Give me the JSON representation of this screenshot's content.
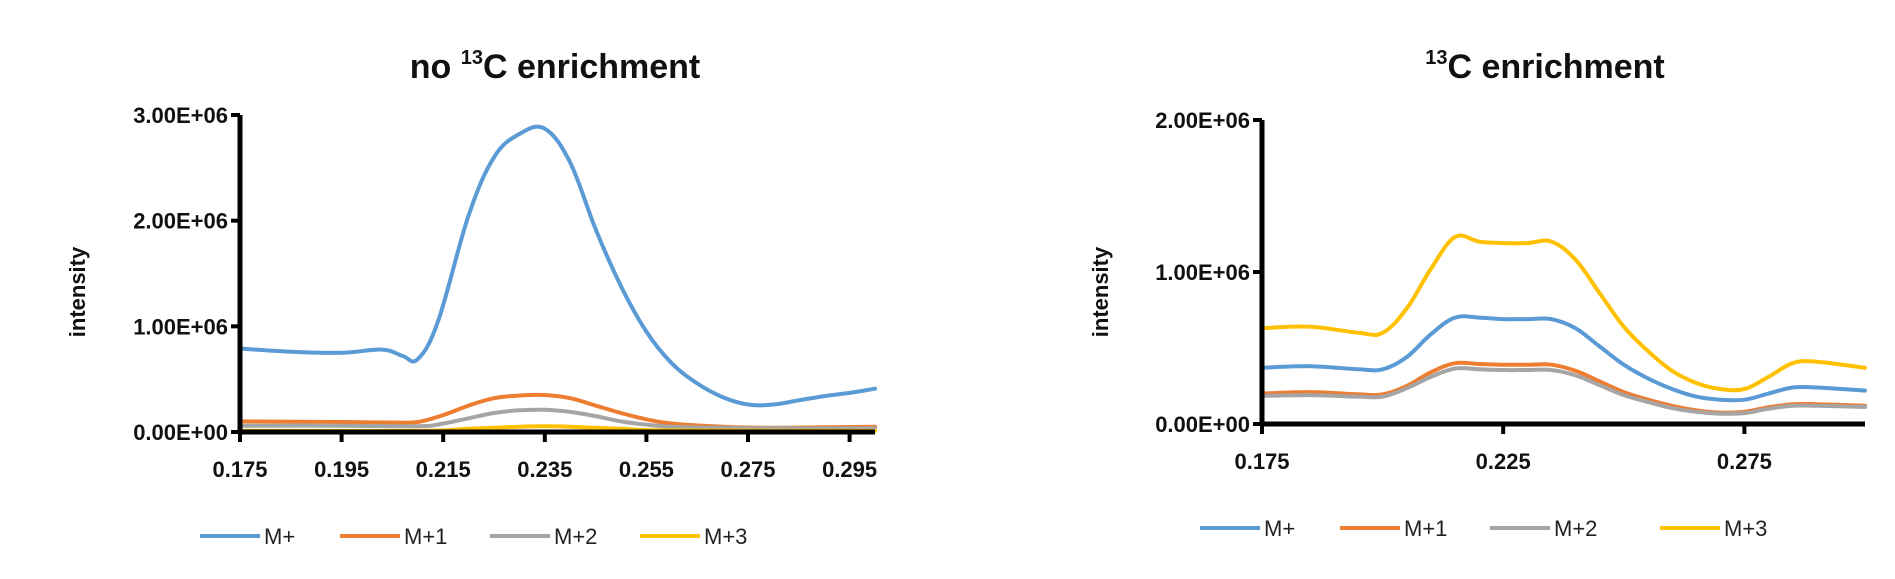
{
  "chart_data": [
    {
      "type": "line",
      "title_prefix": "no ",
      "title_sup": "13",
      "title_suffix": "C enrichment",
      "ylabel": "intensity",
      "xlabel": "",
      "xlim": [
        0.175,
        0.3
      ],
      "ylim": [
        0,
        3000000
      ],
      "xticks": [
        0.175,
        0.195,
        0.215,
        0.235,
        0.255,
        0.275,
        0.295
      ],
      "xtick_labels": [
        "0.175",
        "0.195",
        "0.215",
        "0.235",
        "0.255",
        "0.275",
        "0.295"
      ],
      "yticks": [
        0,
        1000000,
        2000000,
        3000000
      ],
      "ytick_labels": [
        "0.00E+00",
        "1.00E+06",
        "2.00E+06",
        "3.00E+06"
      ],
      "legend_position": "bottom",
      "series": [
        {
          "name": "M+",
          "color": "#5B9BD5",
          "x": [
            0.175,
            0.185,
            0.195,
            0.203,
            0.207,
            0.21,
            0.214,
            0.22,
            0.225,
            0.23,
            0.235,
            0.24,
            0.245,
            0.25,
            0.255,
            0.26,
            0.265,
            0.27,
            0.275,
            0.28,
            0.285,
            0.29,
            0.295,
            0.3
          ],
          "y": [
            790000,
            760000,
            750000,
            780000,
            720000,
            690000,
            1050000,
            2050000,
            2600000,
            2820000,
            2870000,
            2550000,
            1920000,
            1380000,
            950000,
            650000,
            460000,
            330000,
            260000,
            260000,
            300000,
            340000,
            370000,
            410000
          ]
        },
        {
          "name": "M+1",
          "color": "#ED7D31",
          "x": [
            0.175,
            0.195,
            0.205,
            0.21,
            0.215,
            0.22,
            0.225,
            0.23,
            0.235,
            0.24,
            0.245,
            0.25,
            0.255,
            0.26,
            0.27,
            0.28,
            0.29,
            0.3
          ],
          "y": [
            100000,
            95000,
            90000,
            95000,
            160000,
            250000,
            320000,
            345000,
            350000,
            320000,
            250000,
            180000,
            120000,
            80000,
            50000,
            40000,
            45000,
            50000
          ]
        },
        {
          "name": "M+2",
          "color": "#A5A5A5",
          "x": [
            0.175,
            0.195,
            0.21,
            0.215,
            0.22,
            0.225,
            0.23,
            0.235,
            0.24,
            0.245,
            0.25,
            0.255,
            0.26,
            0.27,
            0.28,
            0.3
          ],
          "y": [
            60000,
            60000,
            55000,
            80000,
            130000,
            180000,
            205000,
            210000,
            190000,
            150000,
            100000,
            70000,
            50000,
            40000,
            35000,
            35000
          ]
        },
        {
          "name": "M+3",
          "color": "#FFC000",
          "x": [
            0.175,
            0.21,
            0.22,
            0.23,
            0.235,
            0.24,
            0.25,
            0.26,
            0.3
          ],
          "y": [
            10000,
            10000,
            30000,
            50000,
            55000,
            50000,
            30000,
            15000,
            10000
          ]
        }
      ],
      "legend": [
        "M+",
        "M+1",
        "M+2",
        "M+3"
      ]
    },
    {
      "type": "line",
      "title_prefix": "",
      "title_sup": "13",
      "title_suffix": "C enrichment",
      "ylabel": "intensity",
      "xlabel": "",
      "xlim": [
        0.175,
        0.3
      ],
      "ylim": [
        0,
        2000000
      ],
      "xticks": [
        0.175,
        0.225,
        0.275
      ],
      "xtick_labels": [
        "0.175",
        "0.225",
        "0.275"
      ],
      "yticks": [
        0,
        1000000,
        2000000
      ],
      "ytick_labels": [
        "0.00E+00",
        "1.00E+06",
        "2.00E+06"
      ],
      "legend_position": "bottom",
      "series": [
        {
          "name": "M+",
          "color": "#5B9BD5",
          "x": [
            0.175,
            0.185,
            0.195,
            0.2,
            0.205,
            0.21,
            0.215,
            0.22,
            0.225,
            0.23,
            0.235,
            0.24,
            0.245,
            0.25,
            0.255,
            0.26,
            0.265,
            0.27,
            0.275,
            0.28,
            0.285,
            0.29,
            0.3
          ],
          "y": [
            370000,
            380000,
            360000,
            360000,
            440000,
            590000,
            700000,
            700000,
            690000,
            690000,
            690000,
            630000,
            510000,
            390000,
            300000,
            230000,
            180000,
            160000,
            160000,
            200000,
            240000,
            240000,
            220000
          ]
        },
        {
          "name": "M+1",
          "color": "#ED7D31",
          "x": [
            0.175,
            0.185,
            0.195,
            0.2,
            0.205,
            0.21,
            0.215,
            0.22,
            0.225,
            0.23,
            0.235,
            0.24,
            0.245,
            0.25,
            0.255,
            0.26,
            0.265,
            0.27,
            0.275,
            0.28,
            0.285,
            0.29,
            0.3
          ],
          "y": [
            200000,
            210000,
            195000,
            195000,
            250000,
            340000,
            400000,
            395000,
            390000,
            390000,
            390000,
            350000,
            280000,
            210000,
            160000,
            120000,
            90000,
            75000,
            80000,
            110000,
            130000,
            130000,
            120000
          ]
        },
        {
          "name": "M+2",
          "color": "#A5A5A5",
          "x": [
            0.175,
            0.185,
            0.195,
            0.2,
            0.205,
            0.21,
            0.215,
            0.22,
            0.225,
            0.23,
            0.235,
            0.24,
            0.245,
            0.25,
            0.255,
            0.26,
            0.265,
            0.27,
            0.275,
            0.28,
            0.285,
            0.29,
            0.3
          ],
          "y": [
            185000,
            190000,
            180000,
            180000,
            235000,
            310000,
            365000,
            360000,
            355000,
            355000,
            355000,
            320000,
            255000,
            190000,
            145000,
            105000,
            80000,
            68000,
            72000,
            100000,
            120000,
            120000,
            112000
          ]
        },
        {
          "name": "M+3",
          "color": "#FFC000",
          "x": [
            0.175,
            0.185,
            0.195,
            0.2,
            0.205,
            0.21,
            0.215,
            0.22,
            0.225,
            0.23,
            0.235,
            0.24,
            0.245,
            0.25,
            0.255,
            0.26,
            0.265,
            0.27,
            0.275,
            0.28,
            0.285,
            0.29,
            0.3
          ],
          "y": [
            630000,
            640000,
            600000,
            600000,
            760000,
            1020000,
            1230000,
            1200000,
            1190000,
            1190000,
            1200000,
            1080000,
            860000,
            640000,
            480000,
            350000,
            270000,
            230000,
            230000,
            310000,
            400000,
            410000,
            370000
          ]
        }
      ],
      "legend": [
        "M+",
        "M+1",
        "M+2",
        "M+3"
      ]
    }
  ]
}
